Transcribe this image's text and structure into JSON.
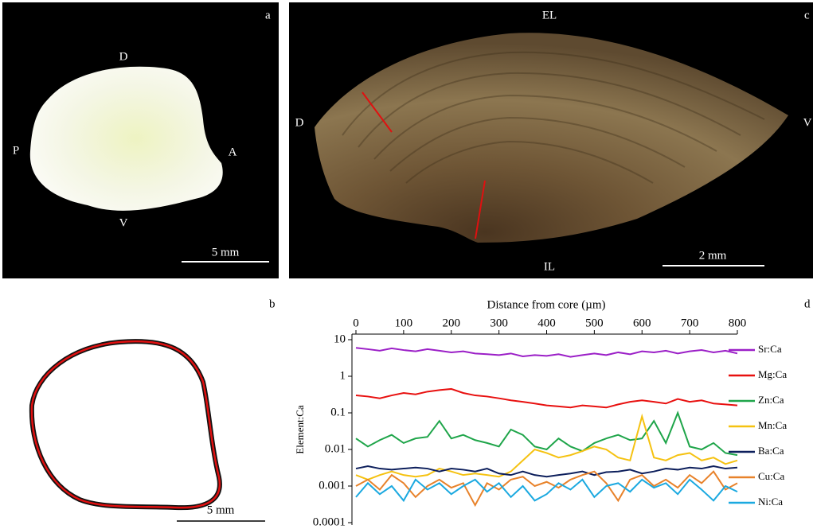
{
  "panels": {
    "a": {
      "label": "a",
      "dorsal": "D",
      "posterior": "P",
      "anterior": "A",
      "ventral": "V",
      "scale": "5 mm"
    },
    "c": {
      "label": "c",
      "top": "EL",
      "left": "D",
      "right": "V",
      "bottom": "IL",
      "scale": "2 mm"
    },
    "b": {
      "label": "b",
      "scale": "5 mm"
    },
    "d": {
      "label": "d"
    }
  },
  "chart_data": {
    "type": "line",
    "xlabel": "Distance from core (µm)",
    "ylabel": "Element:Ca",
    "log_y": true,
    "xlim": [
      0,
      800
    ],
    "xticks": [
      0,
      100,
      200,
      300,
      400,
      500,
      600,
      700,
      800
    ],
    "ylim": [
      0.0001,
      10
    ],
    "yticks": [
      10,
      1,
      0.1,
      0.01,
      0.001,
      0.0001
    ],
    "x": [
      0,
      25,
      50,
      75,
      100,
      125,
      150,
      175,
      200,
      225,
      250,
      275,
      300,
      325,
      350,
      375,
      400,
      425,
      450,
      475,
      500,
      525,
      550,
      575,
      600,
      625,
      650,
      675,
      700,
      725,
      750,
      775,
      800
    ],
    "series": [
      {
        "name": "Sr:Ca",
        "color": "#9b1fc7",
        "values": [
          6,
          5.5,
          5,
          5.8,
          5.2,
          4.8,
          5.5,
          5,
          4.5,
          4.8,
          4.2,
          4,
          3.8,
          4.2,
          3.5,
          3.8,
          3.6,
          4,
          3.4,
          3.8,
          4.2,
          3.8,
          4.5,
          4,
          4.8,
          4.5,
          5,
          4.2,
          4.8,
          5.2,
          4.5,
          5,
          4.2
        ]
      },
      {
        "name": "Mg:Ca",
        "color": "#e8100f",
        "values": [
          0.3,
          0.28,
          0.25,
          0.3,
          0.35,
          0.32,
          0.38,
          0.42,
          0.45,
          0.35,
          0.3,
          0.28,
          0.25,
          0.22,
          0.2,
          0.18,
          0.16,
          0.15,
          0.14,
          0.16,
          0.15,
          0.14,
          0.17,
          0.2,
          0.22,
          0.2,
          0.18,
          0.24,
          0.2,
          0.22,
          0.18,
          0.17,
          0.16
        ]
      },
      {
        "name": "Zn:Ca",
        "color": "#1fa54a",
        "values": [
          0.02,
          0.012,
          0.018,
          0.025,
          0.015,
          0.02,
          0.022,
          0.06,
          0.02,
          0.025,
          0.018,
          0.015,
          0.012,
          0.035,
          0.025,
          0.012,
          0.01,
          0.02,
          0.012,
          0.009,
          0.015,
          0.02,
          0.025,
          0.018,
          0.02,
          0.06,
          0.015,
          0.1,
          0.012,
          0.01,
          0.015,
          0.008,
          0.007
        ]
      },
      {
        "name": "Mn:Ca",
        "color": "#f5c211",
        "values": [
          0.002,
          0.0015,
          0.002,
          0.0025,
          0.002,
          0.0018,
          0.002,
          0.003,
          0.0025,
          0.002,
          0.0022,
          0.002,
          0.0018,
          0.0025,
          0.005,
          0.01,
          0.008,
          0.006,
          0.007,
          0.009,
          0.012,
          0.01,
          0.006,
          0.005,
          0.08,
          0.006,
          0.005,
          0.007,
          0.008,
          0.005,
          0.006,
          0.004,
          0.005
        ]
      },
      {
        "name": "Ba:Ca",
        "color": "#0d1f5c",
        "values": [
          0.003,
          0.0035,
          0.003,
          0.0028,
          0.003,
          0.0032,
          0.003,
          0.0025,
          0.003,
          0.0028,
          0.0025,
          0.003,
          0.0022,
          0.002,
          0.0025,
          0.002,
          0.0018,
          0.002,
          0.0022,
          0.0025,
          0.002,
          0.0024,
          0.0025,
          0.0028,
          0.0022,
          0.0025,
          0.003,
          0.0028,
          0.0032,
          0.003,
          0.0035,
          0.003,
          0.0032
        ]
      },
      {
        "name": "Cu:Ca",
        "color": "#e8822a",
        "values": [
          0.001,
          0.0015,
          0.0008,
          0.002,
          0.0012,
          0.0005,
          0.001,
          0.0015,
          0.0009,
          0.0012,
          0.0003,
          0.0012,
          0.0008,
          0.0015,
          0.0018,
          0.001,
          0.0013,
          0.0009,
          0.0015,
          0.002,
          0.0025,
          0.0012,
          0.0004,
          0.0015,
          0.002,
          0.001,
          0.0015,
          0.0009,
          0.002,
          0.0012,
          0.0025,
          0.0008,
          0.0012
        ]
      },
      {
        "name": "Ni:Ca",
        "color": "#1ba9e0",
        "values": [
          0.0005,
          0.0012,
          0.0006,
          0.001,
          0.0004,
          0.0015,
          0.0008,
          0.0012,
          0.0006,
          0.001,
          0.0015,
          0.0007,
          0.0012,
          0.0005,
          0.001,
          0.0004,
          0.0006,
          0.0012,
          0.0008,
          0.0015,
          0.0005,
          0.001,
          0.0012,
          0.0007,
          0.0015,
          0.0009,
          0.0012,
          0.0006,
          0.0015,
          0.0008,
          0.0004,
          0.001,
          0.0007
        ]
      }
    ]
  }
}
